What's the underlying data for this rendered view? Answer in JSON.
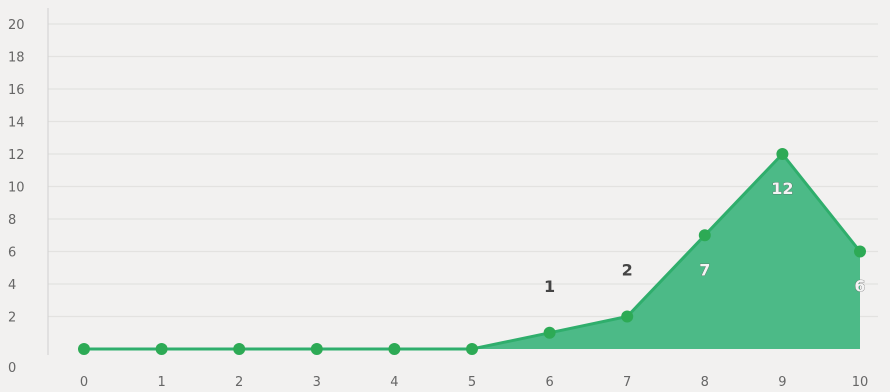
{
  "chart_data": {
    "type": "area",
    "title": "",
    "xlabel": "",
    "ylabel": "",
    "x": [
      0,
      1,
      2,
      3,
      4,
      5,
      6,
      7,
      8,
      9,
      10
    ],
    "x_tick_labels": [
      "0",
      "1",
      "2",
      "3",
      "4",
      "5",
      "6",
      "7",
      "8",
      "9",
      "10"
    ],
    "values": [
      0,
      0,
      0,
      0,
      0,
      0,
      1,
      2,
      7,
      12,
      6
    ],
    "data_labels": [
      "",
      "",
      "",
      "",
      "",
      "",
      "1",
      "2",
      "7",
      "12",
      "6"
    ],
    "ylim": [
      0,
      20
    ],
    "y_ticks": [
      0,
      2,
      4,
      6,
      8,
      10,
      12,
      14,
      16,
      18,
      20
    ],
    "y_tick_labels": [
      "0",
      "2",
      "4",
      "6",
      "8",
      "10",
      "12",
      "14",
      "16",
      "18",
      "20"
    ],
    "grid": true,
    "legend": "none",
    "colors": {
      "area_fill": "#4cba87",
      "line": "#2fae6c",
      "marker": "#2daa55",
      "grid": "#e3e2e0",
      "axis": "#d0d0d0"
    }
  }
}
